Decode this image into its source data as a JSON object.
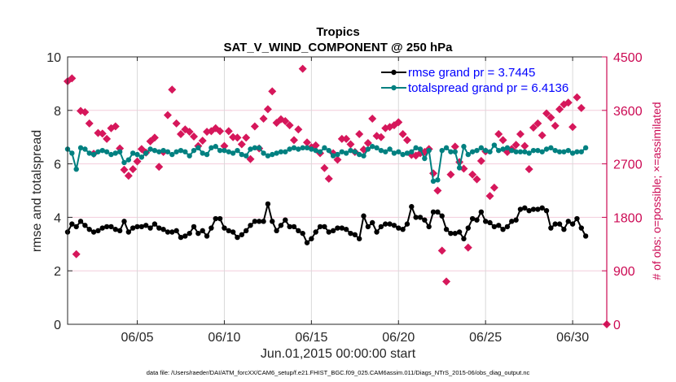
{
  "chart_data": {
    "type": "line",
    "title": "Tropics",
    "subtitle": "SAT_V_WIND_COMPONENT @ 250 hPa",
    "xlabel": "Jun.01,2015 00:00:00 start",
    "ylabel": "rmse and totalspread",
    "y2label": "# of obs: o=possible; ×=assimilated",
    "footer": "data file: /Users/raeder/DAI/ATM_forcXX/CAM6_setup/f.e21.FHIST_BGC.f09_025.CAM6assim.011/Diags_NTrS_2015-06/obs_diag_output.nc",
    "xlim_days": [
      0,
      30.96
    ],
    "x_step_days": 0.25,
    "x_ticks": [
      {
        "day": 4,
        "label": "06/05"
      },
      {
        "day": 9,
        "label": "06/10"
      },
      {
        "day": 14,
        "label": "06/15"
      },
      {
        "day": 19,
        "label": "06/20"
      },
      {
        "day": 24,
        "label": "06/25"
      },
      {
        "day": 29,
        "label": "06/30"
      }
    ],
    "ylim": [
      0,
      10
    ],
    "y_ticks": [
      "0",
      "2",
      "4",
      "6",
      "8",
      "10"
    ],
    "y2lim": [
      0,
      4500
    ],
    "y2_ticks": [
      "0",
      "900",
      "1800",
      "2700",
      "3600",
      "4500"
    ],
    "grid": "y2-lines and x-lines",
    "legend_position": "top-right",
    "colors": {
      "rmse": "#000000",
      "totalspread": "#008080",
      "obs": "#d6175b",
      "right_axis": "#cc0a54",
      "legend_text": "#0000ff"
    },
    "series": [
      {
        "name": "rmse grand pr = 3.7445",
        "values": [
          3.45,
          3.75,
          3.65,
          3.85,
          3.7,
          3.55,
          3.45,
          3.5,
          3.6,
          3.65,
          3.65,
          3.55,
          3.5,
          3.85,
          3.45,
          3.6,
          3.65,
          3.65,
          3.7,
          3.6,
          3.75,
          3.6,
          3.55,
          3.45,
          3.45,
          3.5,
          3.25,
          3.3,
          3.4,
          3.65,
          3.4,
          3.5,
          3.3,
          3.6,
          3.95,
          3.95,
          3.6,
          3.5,
          3.45,
          3.25,
          3.35,
          3.5,
          3.7,
          3.85,
          3.85,
          3.85,
          4.5,
          3.85,
          3.5,
          3.7,
          3.9,
          3.65,
          3.65,
          3.5,
          3.4,
          3.05,
          3.2,
          3.45,
          3.65,
          3.65,
          3.45,
          3.5,
          3.6,
          3.6,
          3.55,
          3.4,
          3.35,
          3.2,
          4.05,
          3.65,
          3.8,
          3.45,
          3.65,
          3.75,
          3.75,
          3.7,
          3.6,
          3.55,
          3.75,
          4.4,
          4.0,
          4.0,
          3.9,
          3.65,
          4.2,
          4.2,
          4.05,
          3.55,
          3.4,
          3.4,
          3.45,
          3.2,
          3.6,
          3.95,
          3.9,
          4.2,
          3.85,
          3.8,
          3.65,
          3.7,
          3.55,
          3.65,
          3.85,
          3.9,
          4.3,
          4.35,
          4.25,
          4.3,
          4.3,
          4.35,
          4.25,
          3.6,
          3.75,
          3.75,
          3.55,
          3.85,
          3.75,
          3.95,
          3.6,
          3.3
        ]
      },
      {
        "name": "totalspread grand pr = 6.4136",
        "values": [
          6.55,
          6.4,
          5.8,
          6.6,
          6.55,
          6.4,
          6.35,
          6.45,
          6.5,
          6.45,
          6.35,
          6.4,
          6.45,
          6.05,
          6.15,
          6.4,
          6.35,
          6.25,
          6.4,
          6.55,
          6.5,
          6.45,
          6.5,
          6.45,
          6.35,
          6.45,
          6.5,
          6.45,
          6.3,
          6.5,
          6.6,
          6.4,
          6.35,
          6.6,
          6.65,
          6.5,
          6.5,
          6.45,
          6.4,
          6.5,
          6.35,
          6.3,
          6.55,
          6.6,
          6.6,
          6.4,
          6.3,
          6.35,
          6.4,
          6.45,
          6.45,
          6.55,
          6.6,
          6.55,
          6.6,
          6.6,
          6.55,
          6.5,
          6.45,
          6.6,
          6.5,
          6.3,
          6.35,
          6.45,
          6.4,
          6.5,
          6.45,
          6.35,
          6.3,
          6.55,
          6.65,
          6.6,
          6.5,
          6.45,
          6.55,
          6.4,
          6.45,
          6.35,
          6.4,
          6.45,
          6.6,
          6.55,
          6.2,
          6.5,
          5.35,
          5.4,
          6.5,
          6.6,
          6.45,
          6.45,
          5.85,
          6.65,
          6.35,
          6.45,
          6.5,
          6.6,
          6.5,
          6.45,
          6.7,
          6.5,
          6.55,
          6.6,
          6.5,
          6.45,
          6.45,
          6.45,
          6.4,
          6.5,
          6.5,
          6.45,
          6.55,
          6.6,
          6.5,
          6.45,
          6.45,
          6.5,
          6.4,
          6.45,
          6.45,
          6.6
        ]
      },
      {
        "name": "obs assimilated",
        "marker": "diamond",
        "points": [
          {
            "day": 0.0,
            "n": 4090
          },
          {
            "day": 0.25,
            "n": 4140
          },
          {
            "day": 0.5,
            "n": 1180
          },
          {
            "day": 0.75,
            "n": 3590
          },
          {
            "day": 1.0,
            "n": 3570
          },
          {
            "day": 1.25,
            "n": 3380
          },
          {
            "day": 1.5,
            "n": 2870
          },
          {
            "day": 1.75,
            "n": 3220
          },
          {
            "day": 2.0,
            "n": 3210
          },
          {
            "day": 2.25,
            "n": 3120
          },
          {
            "day": 2.5,
            "n": 3300
          },
          {
            "day": 2.75,
            "n": 3330
          },
          {
            "day": 3.0,
            "n": 2960
          },
          {
            "day": 3.25,
            "n": 2600
          },
          {
            "day": 3.5,
            "n": 2500
          },
          {
            "day": 3.75,
            "n": 2610
          },
          {
            "day": 4.0,
            "n": 2740
          },
          {
            "day": 4.25,
            "n": 2950
          },
          {
            "day": 4.5,
            "n": 2890
          },
          {
            "day": 4.75,
            "n": 3080
          },
          {
            "day": 5.0,
            "n": 3140
          },
          {
            "day": 5.25,
            "n": 2650
          },
          {
            "day": 5.5,
            "n": 2900
          },
          {
            "day": 5.75,
            "n": 3520
          },
          {
            "day": 6.0,
            "n": 3950
          },
          {
            "day": 6.25,
            "n": 3380
          },
          {
            "day": 6.5,
            "n": 3200
          },
          {
            "day": 6.75,
            "n": 3280
          },
          {
            "day": 7.0,
            "n": 3240
          },
          {
            "day": 7.25,
            "n": 3160
          },
          {
            "day": 7.5,
            "n": 3000
          },
          {
            "day": 7.75,
            "n": 3090
          },
          {
            "day": 8.0,
            "n": 3240
          },
          {
            "day": 8.25,
            "n": 3250
          },
          {
            "day": 8.5,
            "n": 3300
          },
          {
            "day": 8.75,
            "n": 3250
          },
          {
            "day": 9.0,
            "n": 3000
          },
          {
            "day": 9.25,
            "n": 3250
          },
          {
            "day": 9.5,
            "n": 3150
          },
          {
            "day": 9.75,
            "n": 3140
          },
          {
            "day": 10.0,
            "n": 3030
          },
          {
            "day": 10.25,
            "n": 3140
          },
          {
            "day": 10.5,
            "n": 2780
          },
          {
            "day": 10.75,
            "n": 3330
          },
          {
            "day": 11.0,
            "n": 2960
          },
          {
            "day": 11.25,
            "n": 3460
          },
          {
            "day": 11.5,
            "n": 3620
          },
          {
            "day": 11.75,
            "n": 3920
          },
          {
            "day": 12.0,
            "n": 3390
          },
          {
            "day": 12.25,
            "n": 3450
          },
          {
            "day": 12.5,
            "n": 3420
          },
          {
            "day": 12.75,
            "n": 3350
          },
          {
            "day": 13.0,
            "n": 3100
          },
          {
            "day": 13.25,
            "n": 3280
          },
          {
            "day": 13.5,
            "n": 4300
          },
          {
            "day": 13.75,
            "n": 3060
          },
          {
            "day": 14.0,
            "n": 2980
          },
          {
            "day": 14.25,
            "n": 3010
          },
          {
            "day": 14.5,
            "n": 2880
          },
          {
            "day": 14.75,
            "n": 2630
          },
          {
            "day": 15.0,
            "n": 2450
          },
          {
            "day": 15.25,
            "n": 2880
          },
          {
            "day": 15.5,
            "n": 2770
          },
          {
            "day": 15.75,
            "n": 3120
          },
          {
            "day": 16.0,
            "n": 3120
          },
          {
            "day": 16.25,
            "n": 3030
          },
          {
            "day": 16.5,
            "n": 2900
          },
          {
            "day": 16.75,
            "n": 3200
          },
          {
            "day": 17.0,
            "n": 2940
          },
          {
            "day": 17.25,
            "n": 3050
          },
          {
            "day": 17.5,
            "n": 3460
          },
          {
            "day": 17.75,
            "n": 3170
          },
          {
            "day": 18.0,
            "n": 3150
          },
          {
            "day": 18.25,
            "n": 3300
          },
          {
            "day": 18.5,
            "n": 3320
          },
          {
            "day": 18.75,
            "n": 3350
          },
          {
            "day": 19.0,
            "n": 3400
          },
          {
            "day": 19.25,
            "n": 3200
          },
          {
            "day": 19.5,
            "n": 3100
          },
          {
            "day": 19.75,
            "n": 2850
          },
          {
            "day": 20.0,
            "n": 2840
          },
          {
            "day": 20.25,
            "n": 2880
          },
          {
            "day": 20.5,
            "n": 2900
          },
          {
            "day": 20.75,
            "n": 2950
          },
          {
            "day": 21.0,
            "n": 2540
          },
          {
            "day": 21.25,
            "n": 2250
          },
          {
            "day": 21.5,
            "n": 1240
          },
          {
            "day": 21.75,
            "n": 720
          },
          {
            "day": 22.0,
            "n": 2520
          },
          {
            "day": 22.25,
            "n": 2990
          },
          {
            "day": 22.5,
            "n": 2730
          },
          {
            "day": 22.75,
            "n": 2620
          },
          {
            "day": 23.0,
            "n": 1290
          },
          {
            "day": 23.25,
            "n": 2520
          },
          {
            "day": 23.5,
            "n": 2440
          },
          {
            "day": 23.75,
            "n": 2750
          },
          {
            "day": 24.0,
            "n": 2910
          },
          {
            "day": 24.25,
            "n": 2160
          },
          {
            "day": 24.5,
            "n": 2300
          },
          {
            "day": 24.75,
            "n": 3200
          },
          {
            "day": 25.0,
            "n": 3100
          },
          {
            "day": 25.25,
            "n": 2900
          },
          {
            "day": 25.5,
            "n": 2950
          },
          {
            "day": 25.75,
            "n": 3020
          },
          {
            "day": 26.0,
            "n": 3200
          },
          {
            "day": 26.25,
            "n": 3000
          },
          {
            "day": 26.5,
            "n": 2610
          },
          {
            "day": 26.75,
            "n": 3310
          },
          {
            "day": 27.0,
            "n": 3380
          },
          {
            "day": 27.25,
            "n": 3180
          },
          {
            "day": 27.5,
            "n": 3550
          },
          {
            "day": 27.75,
            "n": 3480
          },
          {
            "day": 28.0,
            "n": 3340
          },
          {
            "day": 28.25,
            "n": 3620
          },
          {
            "day": 28.5,
            "n": 3700
          },
          {
            "day": 28.75,
            "n": 3730
          },
          {
            "day": 29.0,
            "n": 3320
          },
          {
            "day": 29.25,
            "n": 3820
          },
          {
            "day": 29.5,
            "n": 3640
          },
          {
            "day": 30.96,
            "n": 0
          }
        ]
      }
    ]
  }
}
